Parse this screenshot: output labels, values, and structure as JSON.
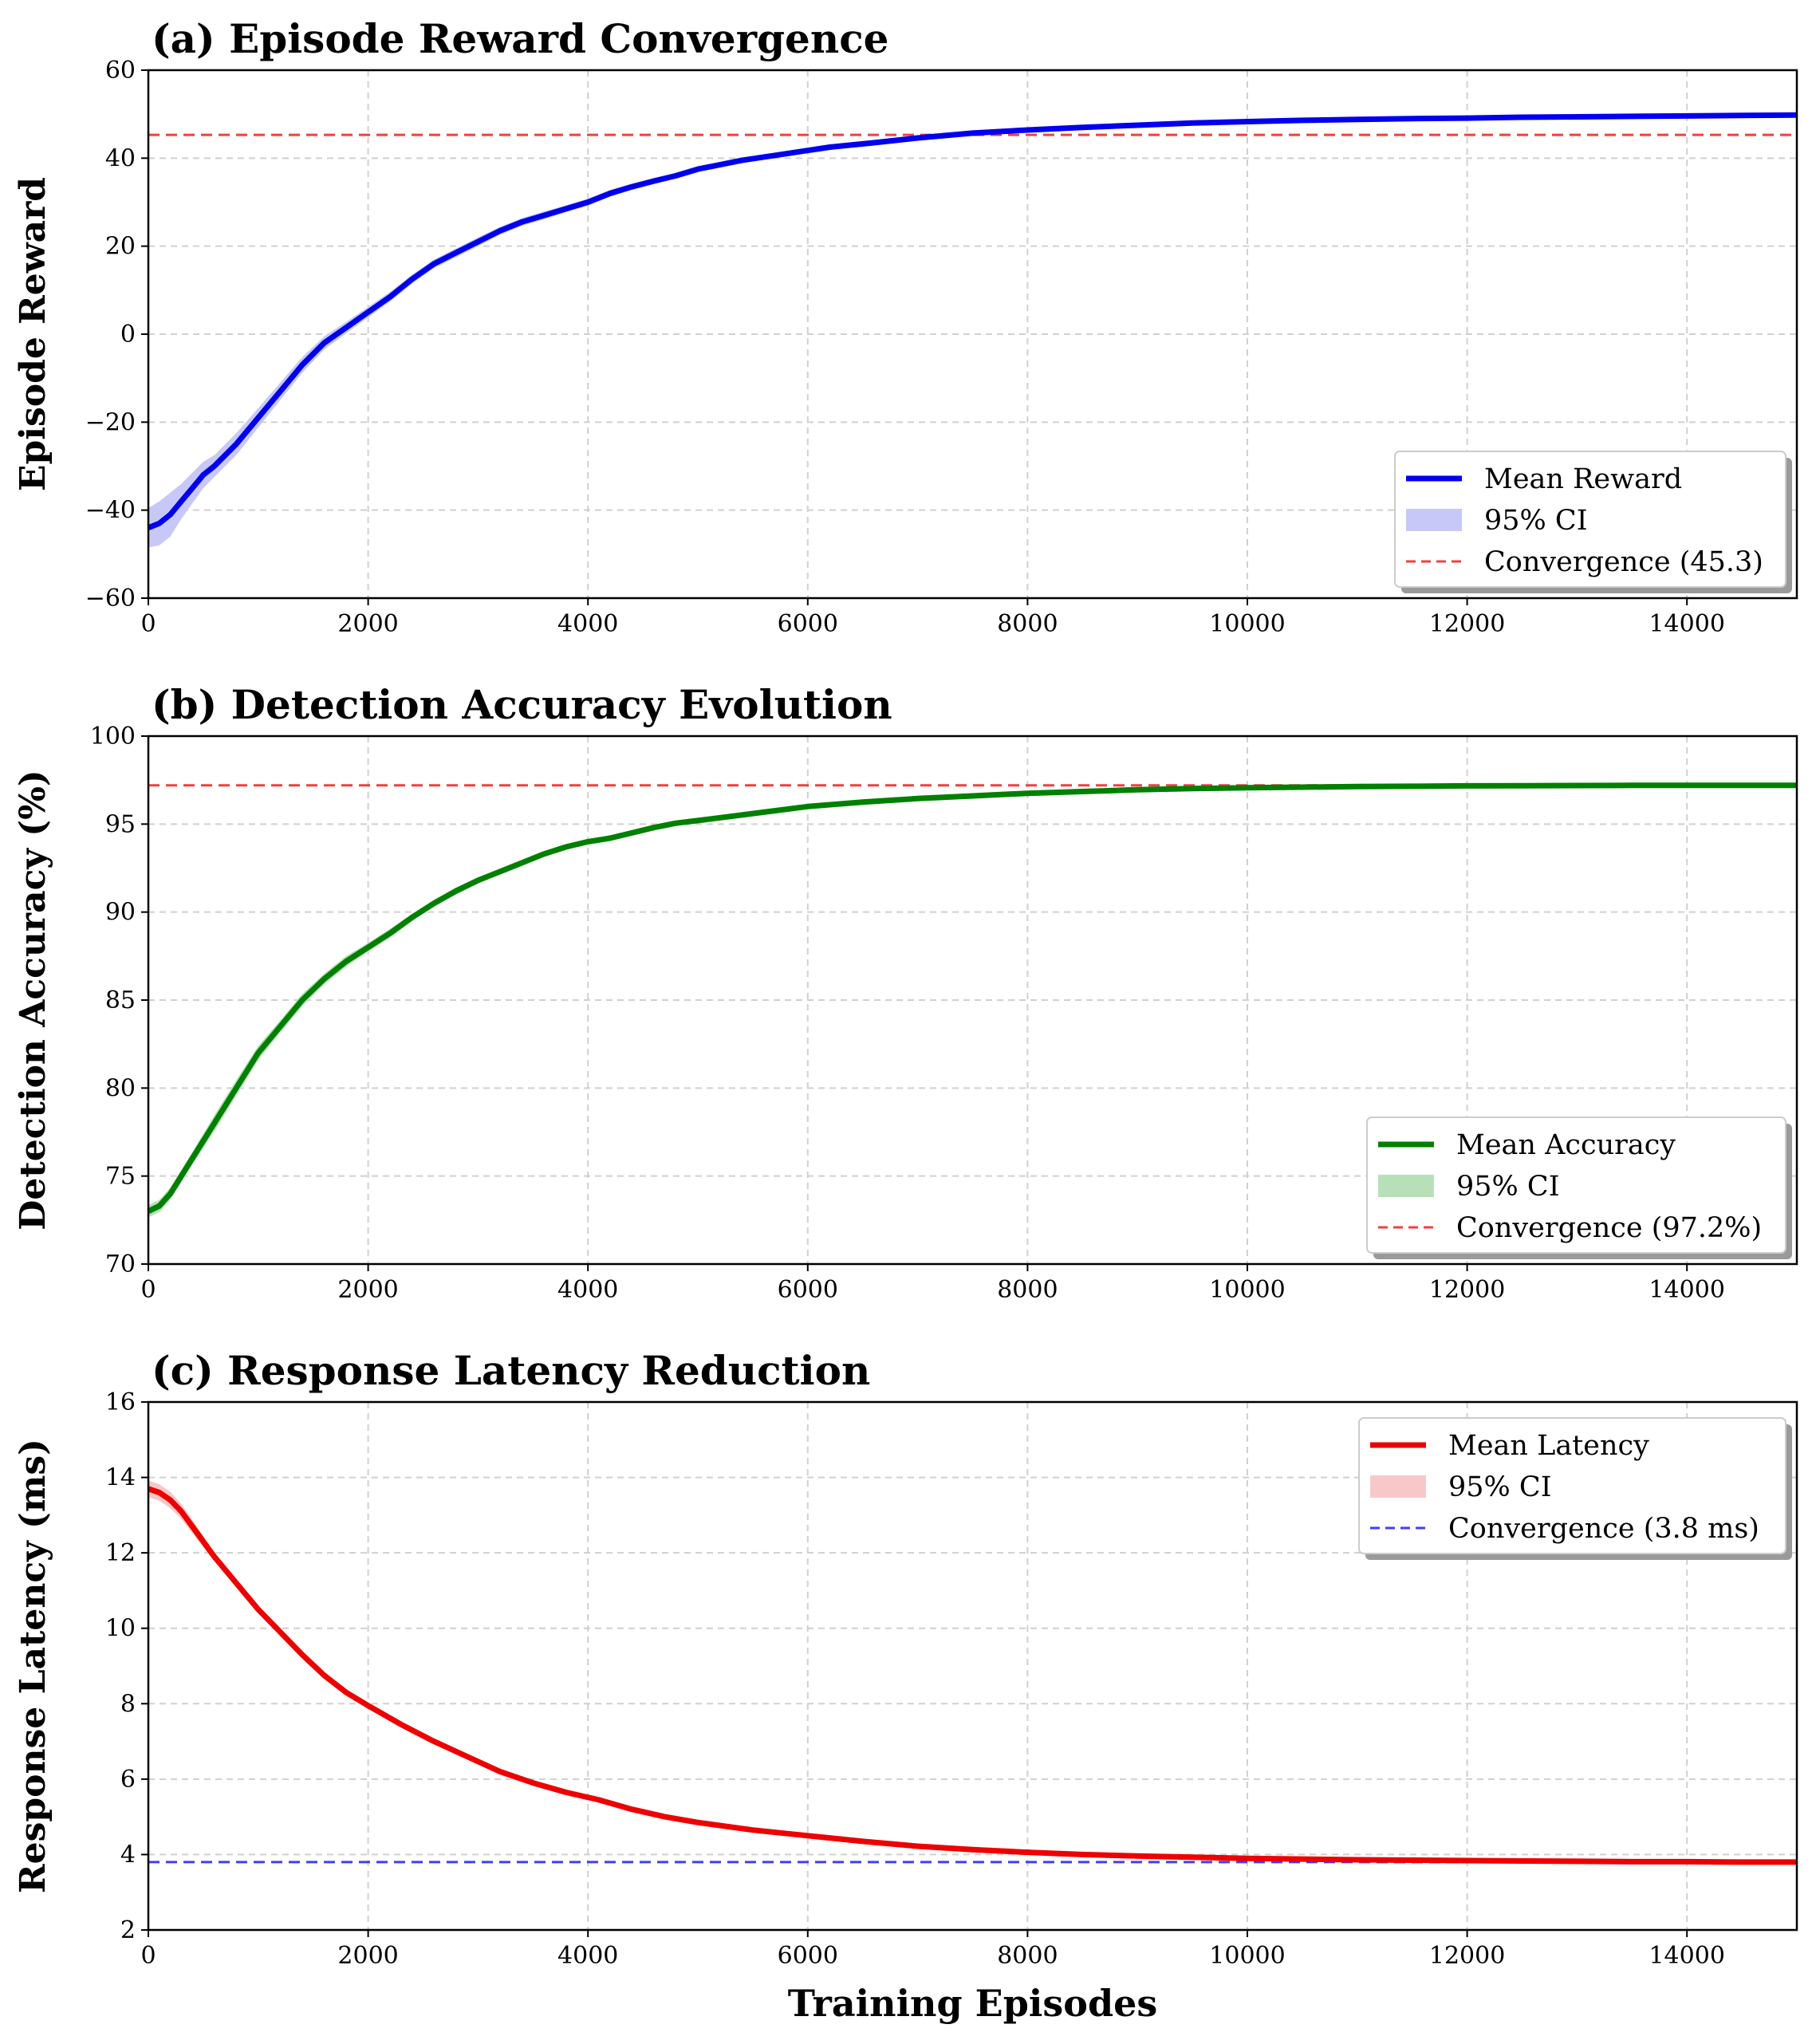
{
  "chart_data": [
    {
      "type": "line",
      "title": "(a) Episode Reward Convergence",
      "xlabel": "",
      "ylabel": "Episode Reward",
      "xlim": [
        0,
        15000
      ],
      "ylim": [
        -60,
        60
      ],
      "xticks": [
        0,
        2000,
        4000,
        6000,
        8000,
        10000,
        12000,
        14000
      ],
      "xtick_labels": [
        "0",
        "2000",
        "4000",
        "6000",
        "8000",
        "10000",
        "12000",
        "14000"
      ],
      "yticks": [
        -60,
        -40,
        -20,
        0,
        20,
        40,
        60
      ],
      "ytick_labels": [
        "−60",
        "−40",
        "−20",
        "0",
        "20",
        "40",
        "60"
      ],
      "grid": true,
      "legend_position": "bottom-right",
      "line_color": "#0000ee",
      "ci_color": "#c8c8f8",
      "conv_color": "#f04040",
      "legend": {
        "mean": "Mean Reward",
        "ci": "95% CI",
        "conv": "Convergence (45.3)"
      },
      "convergence": 45.3,
      "series": [
        {
          "name": "Mean Reward",
          "x": [
            0,
            100,
            200,
            300,
            400,
            500,
            600,
            800,
            1000,
            1200,
            1400,
            1600,
            1800,
            2000,
            2200,
            2400,
            2600,
            2800,
            3000,
            3200,
            3400,
            3600,
            3800,
            4000,
            4200,
            4400,
            4600,
            4800,
            5000,
            5400,
            5800,
            6200,
            6600,
            7000,
            7500,
            8000,
            8500,
            9000,
            9500,
            10000,
            10500,
            11000,
            11500,
            12000,
            12500,
            13000,
            13500,
            14000,
            14500,
            15000
          ],
          "y": [
            -44,
            -43,
            -41,
            -38,
            -35,
            -32,
            -30,
            -25,
            -19,
            -13,
            -7,
            -2,
            1.5,
            5,
            8.5,
            12.5,
            16,
            18.5,
            21,
            23.5,
            25.5,
            27,
            28.5,
            30,
            32,
            33.5,
            34.8,
            36,
            37.5,
            39.5,
            41,
            42.5,
            43.5,
            44.6,
            45.7,
            46.4,
            47,
            47.5,
            48,
            48.3,
            48.6,
            48.8,
            49,
            49.1,
            49.3,
            49.4,
            49.5,
            49.6,
            49.7,
            49.8
          ],
          "ci_half_width": [
            4.5,
            5,
            5,
            4,
            3.5,
            3,
            2.5,
            2.5,
            2.2,
            2,
            1.8,
            1.5,
            1.3,
            1.2,
            1.1,
            1,
            1,
            1,
            1,
            0.9,
            0.9,
            0.9,
            0.8,
            0.8,
            0.8,
            0.7,
            0.7,
            0.6,
            0.6,
            0.5,
            0.5,
            0.5,
            0.4,
            0.4,
            0.4,
            0.3,
            0.3,
            0.3,
            0.3,
            0.3,
            0.3,
            0.3,
            0.3,
            0.3,
            0.3,
            0.3,
            0.3,
            0.3,
            0.3,
            0.3
          ]
        }
      ]
    },
    {
      "type": "line",
      "title": "(b) Detection Accuracy Evolution",
      "xlabel": "",
      "ylabel": "Detection Accuracy (%)",
      "xlim": [
        0,
        15000
      ],
      "ylim": [
        70,
        100
      ],
      "xticks": [
        0,
        2000,
        4000,
        6000,
        8000,
        10000,
        12000,
        14000
      ],
      "xtick_labels": [
        "0",
        "2000",
        "4000",
        "6000",
        "8000",
        "10000",
        "12000",
        "14000"
      ],
      "yticks": [
        70,
        75,
        80,
        85,
        90,
        95,
        100
      ],
      "ytick_labels": [
        "70",
        "75",
        "80",
        "85",
        "90",
        "95",
        "100"
      ],
      "grid": true,
      "legend_position": "bottom-right",
      "line_color": "#008000",
      "ci_color": "#b8e0b8",
      "conv_color": "#f04040",
      "legend": {
        "mean": "Mean Accuracy",
        "ci": "95% CI",
        "conv": "Convergence (97.2%)"
      },
      "convergence": 97.2,
      "series": [
        {
          "name": "Mean Accuracy",
          "x": [
            0,
            100,
            200,
            400,
            600,
            800,
            1000,
            1200,
            1400,
            1600,
            1800,
            2000,
            2200,
            2400,
            2600,
            2800,
            3000,
            3200,
            3400,
            3600,
            3800,
            4000,
            4200,
            4400,
            4600,
            4800,
            5000,
            5500,
            6000,
            6500,
            7000,
            7500,
            8000,
            8500,
            9000,
            9500,
            10000,
            10500,
            11000,
            11500,
            12000,
            12500,
            13000,
            13500,
            14000,
            14500,
            15000
          ],
          "y": [
            73,
            73.3,
            74,
            76,
            78,
            80,
            82,
            83.5,
            85,
            86.2,
            87.2,
            88,
            88.8,
            89.7,
            90.5,
            91.2,
            91.8,
            92.3,
            92.8,
            93.3,
            93.7,
            94,
            94.2,
            94.5,
            94.8,
            95.05,
            95.2,
            95.6,
            96,
            96.25,
            96.45,
            96.6,
            96.75,
            96.85,
            96.95,
            97.02,
            97.07,
            97.1,
            97.13,
            97.15,
            97.17,
            97.18,
            97.19,
            97.2,
            97.2,
            97.2,
            97.2
          ],
          "ci_half_width": [
            0.35,
            0.35,
            0.35,
            0.35,
            0.45,
            0.45,
            0.4,
            0.35,
            0.35,
            0.3,
            0.3,
            0.25,
            0.25,
            0.2,
            0.2,
            0.2,
            0.18,
            0.15,
            0.15,
            0.15,
            0.12,
            0.12,
            0.12,
            0.1,
            0.1,
            0.1,
            0.1,
            0.1,
            0.08,
            0.08,
            0.08,
            0.08,
            0.08,
            0.08,
            0.06,
            0.06,
            0.06,
            0.06,
            0.06,
            0.06,
            0.06,
            0.06,
            0.06,
            0.06,
            0.06,
            0.06,
            0.06
          ]
        }
      ]
    },
    {
      "type": "line",
      "title": "(c) Response Latency Reduction",
      "xlabel": "Training Episodes",
      "ylabel": "Response Latency (ms)",
      "xlim": [
        0,
        15000
      ],
      "ylim": [
        2,
        16
      ],
      "xticks": [
        0,
        2000,
        4000,
        6000,
        8000,
        10000,
        12000,
        14000
      ],
      "xtick_labels": [
        "0",
        "2000",
        "4000",
        "6000",
        "8000",
        "10000",
        "12000",
        "14000"
      ],
      "yticks": [
        2,
        4,
        6,
        8,
        10,
        12,
        14,
        16
      ],
      "ytick_labels": [
        "2",
        "4",
        "6",
        "8",
        "10",
        "12",
        "14",
        "16"
      ],
      "grid": true,
      "legend_position": "top-right",
      "line_color": "#ee0000",
      "ci_color": "#f8c8c8",
      "conv_color": "#4040f0",
      "legend": {
        "mean": "Mean Latency",
        "ci": "95% CI",
        "conv": "Convergence (3.8 ms)"
      },
      "convergence": 3.8,
      "series": [
        {
          "name": "Mean Latency",
          "x": [
            0,
            100,
            200,
            300,
            400,
            500,
            600,
            800,
            1000,
            1200,
            1400,
            1600,
            1800,
            2000,
            2300,
            2600,
            2900,
            3200,
            3500,
            3800,
            4100,
            4400,
            4700,
            5000,
            5500,
            6000,
            6500,
            7000,
            7500,
            8000,
            8500,
            9000,
            9500,
            10000,
            10500,
            11000,
            11500,
            12000,
            12500,
            13000,
            13500,
            14000,
            14500,
            15000
          ],
          "y": [
            13.7,
            13.6,
            13.4,
            13.1,
            12.7,
            12.3,
            11.9,
            11.2,
            10.5,
            9.9,
            9.3,
            8.75,
            8.3,
            7.95,
            7.45,
            7.0,
            6.6,
            6.2,
            5.9,
            5.65,
            5.45,
            5.2,
            5.0,
            4.85,
            4.65,
            4.5,
            4.35,
            4.22,
            4.13,
            4.06,
            4.0,
            3.96,
            3.93,
            3.9,
            3.88,
            3.86,
            3.85,
            3.84,
            3.83,
            3.82,
            3.81,
            3.81,
            3.8,
            3.8
          ],
          "ci_half_width": [
            0.22,
            0.22,
            0.22,
            0.2,
            0.18,
            0.15,
            0.12,
            0.1,
            0.08,
            0.07,
            0.06,
            0.05,
            0.05,
            0.05,
            0.04,
            0.04,
            0.04,
            0.04,
            0.04,
            0.03,
            0.03,
            0.03,
            0.03,
            0.03,
            0.03,
            0.03,
            0.03,
            0.03,
            0.03,
            0.03,
            0.03,
            0.03,
            0.03,
            0.03,
            0.03,
            0.03,
            0.03,
            0.03,
            0.03,
            0.03,
            0.03,
            0.03,
            0.03,
            0.03
          ]
        }
      ]
    }
  ]
}
